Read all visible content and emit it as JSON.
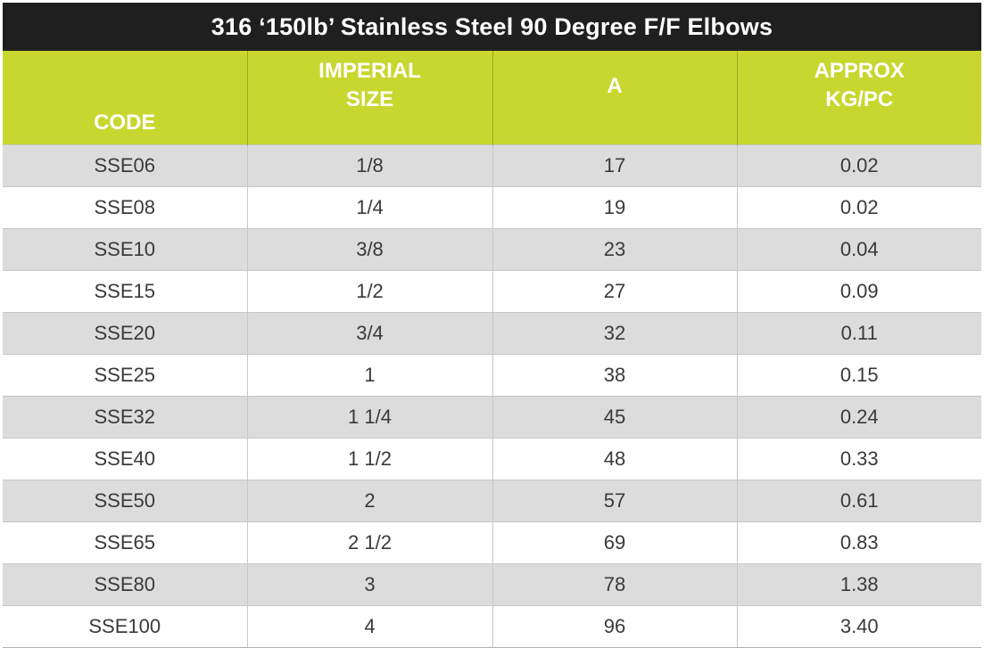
{
  "title": "316 ‘150lb’ Stainless Steel  90 Degree F/F Elbows",
  "colors": {
    "title_bg": "#1f1f1f",
    "header_bg": "#c7d72f",
    "row_shade": "#dcdcdc",
    "text": "#3a3a3a"
  },
  "headers": {
    "code": "CODE",
    "imperial_line1": "IMPERIAL",
    "imperial_line2": "SIZE",
    "a": "A",
    "approx_line1": "APPROX",
    "approx_line2": "KG/PC"
  },
  "rows": [
    {
      "code": "SSE06",
      "size": "1/8",
      "a": "17",
      "kg": "0.02"
    },
    {
      "code": "SSE08",
      "size": "1/4",
      "a": "19",
      "kg": "0.02"
    },
    {
      "code": "SSE10",
      "size": "3/8",
      "a": "23",
      "kg": "0.04"
    },
    {
      "code": "SSE15",
      "size": "1/2",
      "a": "27",
      "kg": "0.09"
    },
    {
      "code": "SSE20",
      "size": "3/4",
      "a": "32",
      "kg": "0.11"
    },
    {
      "code": "SSE25",
      "size": "1",
      "a": "38",
      "kg": "0.15"
    },
    {
      "code": "SSE32",
      "size": "1 1/4",
      "a": "45",
      "kg": "0.24"
    },
    {
      "code": "SSE40",
      "size": "1 1/2",
      "a": "48",
      "kg": "0.33"
    },
    {
      "code": "SSE50",
      "size": "2",
      "a": "57",
      "kg": "0.61"
    },
    {
      "code": "SSE65",
      "size": "2 1/2",
      "a": "69",
      "kg": "0.83"
    },
    {
      "code": "SSE80",
      "size": "3",
      "a": "78",
      "kg": "1.38"
    },
    {
      "code": "SSE100",
      "size": "4",
      "a": "96",
      "kg": "3.40"
    }
  ]
}
